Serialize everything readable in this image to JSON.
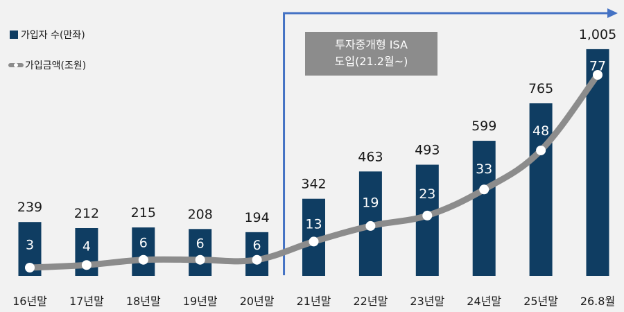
{
  "chart_data": {
    "type": "bar",
    "categories": [
      "16년말",
      "17년말",
      "18년말",
      "19년말",
      "20년말",
      "21년말",
      "22년말",
      "23년말",
      "24년말",
      "25년말",
      "26.8월"
    ],
    "series": [
      {
        "name": "가입자 수(만좌)",
        "type": "bar",
        "values": [
          239,
          212,
          215,
          208,
          194,
          342,
          463,
          493,
          599,
          765,
          1005
        ],
        "labels": [
          "239",
          "212",
          "215",
          "208",
          "194",
          "342",
          "463",
          "493",
          "599",
          "765",
          "1,005"
        ],
        "color": "#0f3d62"
      },
      {
        "name": "가입금액(조원)",
        "type": "line",
        "values": [
          3,
          4,
          6,
          6,
          6,
          13,
          19,
          23,
          33,
          48,
          77
        ],
        "color": "#8c8c8c"
      }
    ],
    "ylim": [
      0,
      1100
    ],
    "y2lim": [
      0,
      90
    ],
    "legend_position": "top-left",
    "annotation": {
      "lines": [
        "투자중개형 ISA",
        "도입(21.2월~)"
      ],
      "color": "#8c8c8c",
      "bracket_color": "#4472c4"
    }
  }
}
